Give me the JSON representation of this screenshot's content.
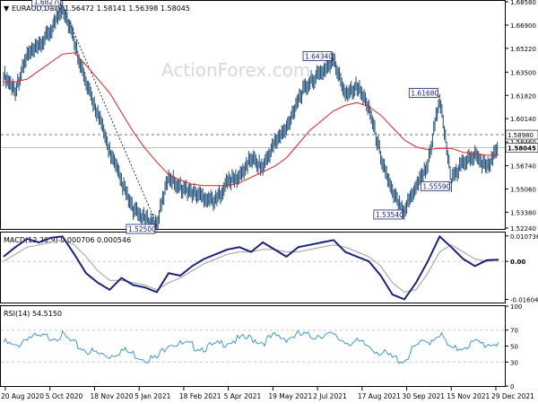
{
  "colors": {
    "price": "#1f4e79",
    "ma": "#e02020",
    "macd": "#1a237e",
    "signal": "#9e9e9e",
    "rsi": "#2a8fd6",
    "grid": "#d0d0d0",
    "axis": "#000000",
    "label_fill": "#ffffff",
    "label_text": "#1a237e",
    "current_price_box": "#ffffff"
  },
  "header": {
    "symbol_line": "EURAUD,Daily",
    "ohlc": "1.56472 1.58141 1.56398 1.58045",
    "watermark": "ActionForex.com"
  },
  "chart_data": [
    {
      "type": "line",
      "panel": "price",
      "series": [
        {
          "values": [
            1.633,
            1.622,
            1.647,
            1.653,
            1.665,
            1.6827,
            1.658,
            1.626,
            1.605,
            1.578,
            1.5556,
            1.535,
            1.529,
            1.525,
            1.56,
            1.552,
            1.548,
            1.545,
            1.542,
            1.556,
            1.559,
            1.573,
            1.566,
            1.584,
            1.594,
            1.616,
            1.628,
            1.635,
            1.6434,
            1.62,
            1.625,
            1.61,
            1.575,
            1.547,
            1.5354,
            1.553,
            1.568,
            1.6168,
            1.5559,
            1.57,
            1.575,
            1.566,
            1.58045
          ]
        },
        {
          "values": [
            1.628,
            1.628,
            1.63,
            1.636,
            1.642,
            1.648,
            1.649,
            1.64,
            1.63,
            1.62,
            1.606,
            1.592,
            1.58,
            1.57,
            1.561,
            1.557,
            1.554,
            1.553,
            1.553,
            1.553,
            1.555,
            1.559,
            1.563,
            1.567,
            1.573,
            1.583,
            1.593,
            1.6,
            1.607,
            1.611,
            1.613,
            1.61,
            1.604,
            1.595,
            1.586,
            1.581,
            1.579,
            1.58,
            1.58,
            1.577,
            1.576,
            1.575,
            1.575
          ]
        }
      ],
      "annotations": [
        "1.68270",
        "1.52500",
        "1.64340",
        "1.53540",
        "1.61680",
        "1.55590"
      ],
      "current_price": "1.58045",
      "level": "1.58980",
      "y_ticks": [
        "1.68580",
        "1.66900",
        "1.65220",
        "1.63500",
        "1.61820",
        "1.60140",
        "1.58460",
        "1.56740",
        "1.55060",
        "1.53380",
        "1.52240"
      ]
    },
    {
      "type": "line",
      "panel": "macd",
      "title": "MACD(12,26,9) 0.000706 0.000546",
      "series": [
        {
          "values": [
            0.002,
            0.006,
            0.0095,
            0.008,
            0.01,
            0.0105,
            0.003,
            -0.005,
            -0.009,
            -0.012,
            -0.007,
            -0.01,
            -0.011,
            -0.013,
            -0.005,
            -0.006,
            -0.002,
            0.001,
            0.003,
            0.005,
            0.006,
            0.004,
            0.008,
            0.005,
            0.002,
            0.006,
            0.007,
            0.008,
            0.009,
            0.004,
            0.002,
            0.0,
            -0.006,
            -0.014,
            -0.016,
            -0.009,
            0.0,
            0.0105,
            0.006,
            0.001,
            -0.002,
            0.0005,
            0.000706
          ]
        },
        {
          "values": [
            0.0,
            0.003,
            0.006,
            0.007,
            0.008,
            0.009,
            0.007,
            0.002,
            -0.004,
            -0.008,
            -0.008,
            -0.009,
            -0.01,
            -0.012,
            -0.009,
            -0.007,
            -0.004,
            -0.001,
            0.001,
            0.003,
            0.004,
            0.004,
            0.005,
            0.005,
            0.004,
            0.004,
            0.005,
            0.006,
            0.007,
            0.006,
            0.004,
            0.002,
            -0.002,
            -0.009,
            -0.013,
            -0.012,
            -0.005,
            0.004,
            0.007,
            0.004,
            0.001,
            0.0,
            0.000546
          ]
        }
      ],
      "y_ticks": [
        "0.010736",
        "0.00",
        "-0.016046"
      ]
    },
    {
      "type": "line",
      "panel": "rsi",
      "title": "RSI(14) 54.5150",
      "series": [
        {
          "values": [
            55,
            48,
            62,
            60,
            62,
            63,
            52,
            45,
            40,
            38,
            45,
            40,
            35,
            34,
            55,
            52,
            50,
            48,
            50,
            56,
            58,
            60,
            55,
            62,
            60,
            64,
            62,
            65,
            62,
            56,
            54,
            50,
            42,
            35,
            32,
            50,
            55,
            66,
            44,
            50,
            54,
            52,
            54.5
          ]
        }
      ],
      "y_ticks": [
        "100",
        "70",
        "50",
        "30",
        "0"
      ]
    }
  ],
  "x_ticks": [
    "20 Aug 2020",
    "5 Oct 2020",
    "18 Nov 2020",
    "5 Jan 2021",
    "18 Feb 2021",
    "5 Apr 2021",
    "19 May 2021",
    "2 Jul 2021",
    "17 Aug 2021",
    "30 Sep 2021",
    "15 Nov 2021",
    "29 Dec 2021"
  ]
}
